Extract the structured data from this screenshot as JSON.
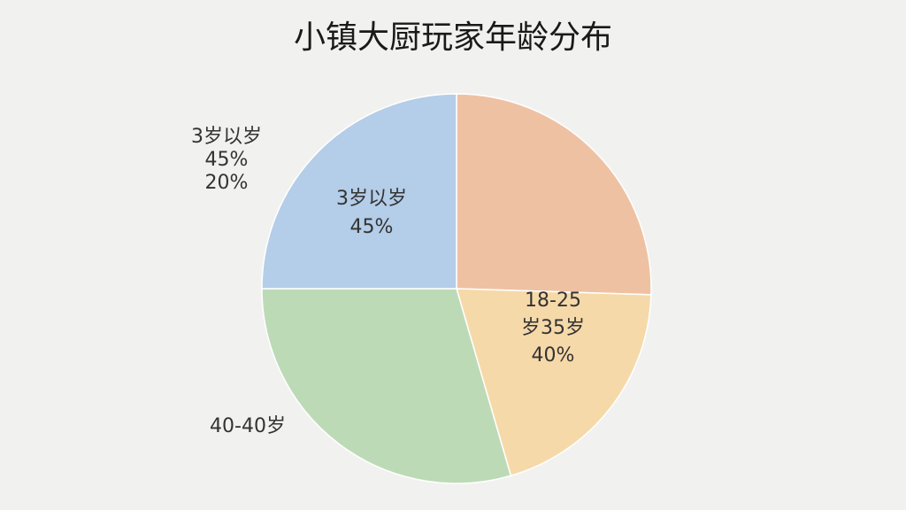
{
  "chart_data": {
    "type": "pie",
    "title": "小镇大厨玩家年龄分布",
    "values": [
      25.5,
      20,
      29.5,
      25
    ],
    "colors": [
      "#efc1a3",
      "#f6d9a9",
      "#bddab7",
      "#b4cde8"
    ],
    "annotations": [
      [
        "3岁以岁",
        "45%",
        "20%"
      ],
      [
        "3岁以岁",
        "45%"
      ],
      [
        "18-25",
        "岁35岁",
        "40%"
      ],
      [
        "40-40岁"
      ]
    ]
  }
}
